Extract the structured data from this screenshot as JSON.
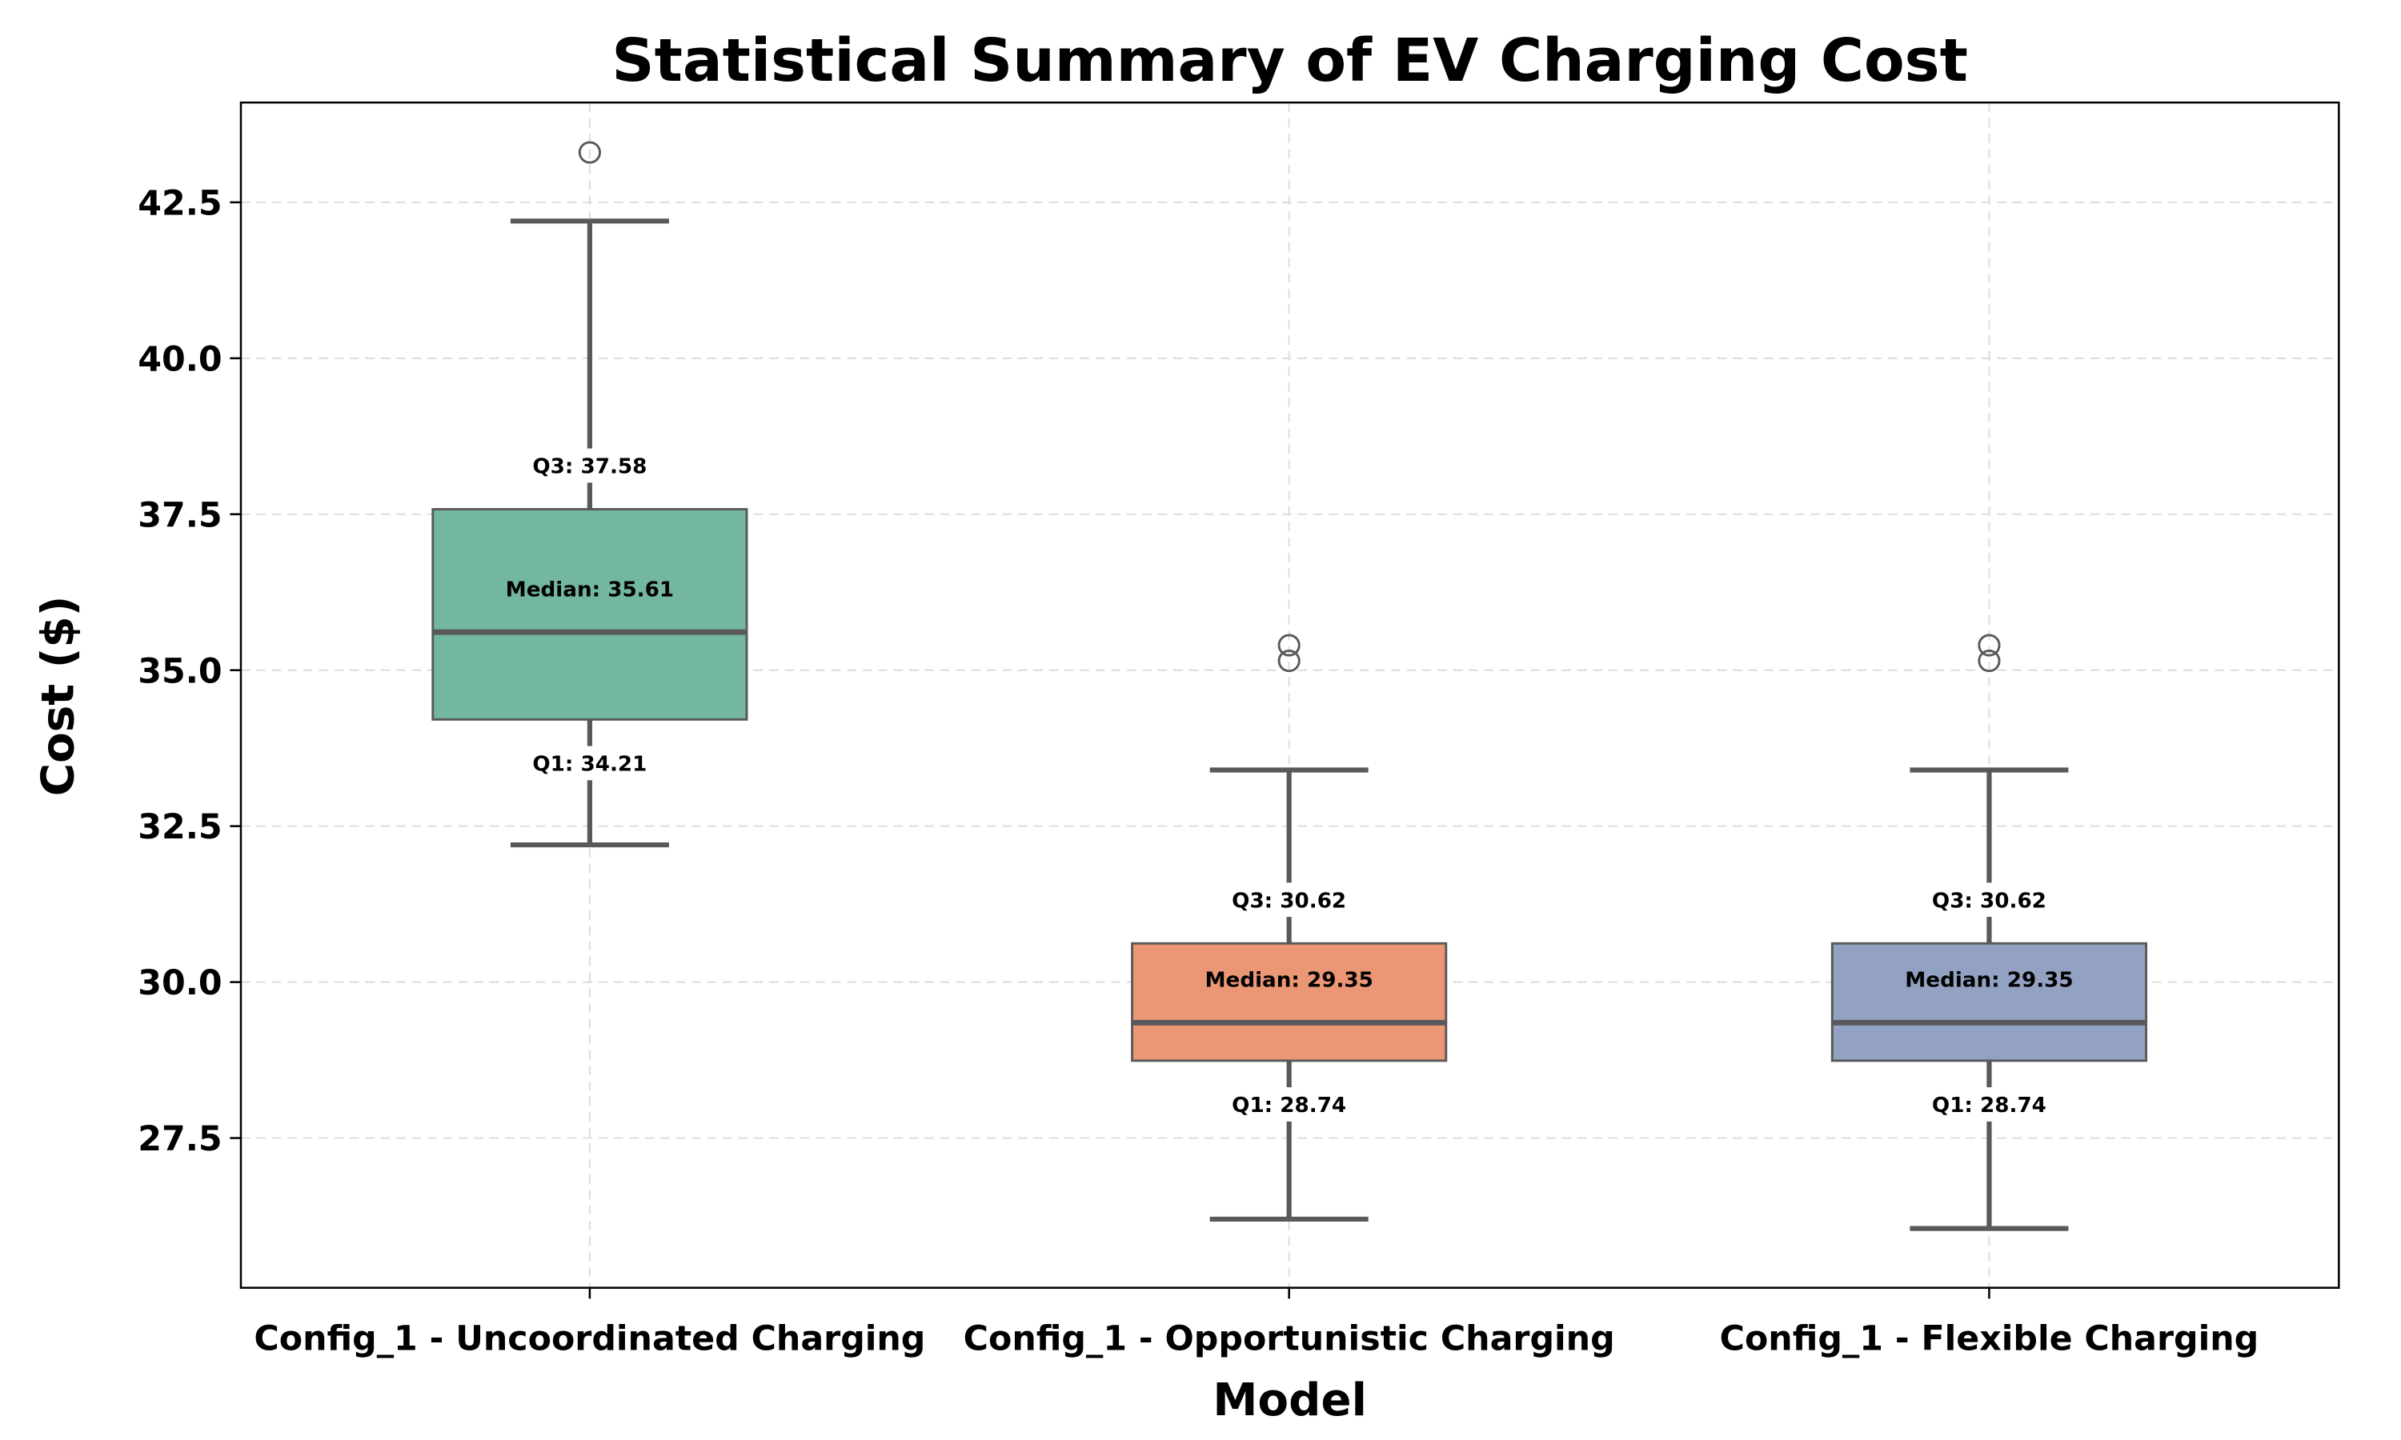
{
  "chart_data": {
    "type": "box",
    "title": "Statistical Summary of EV Charging Cost",
    "xlabel": "Model",
    "ylabel": "Cost ($)",
    "ylim": [
      25.1,
      44.1
    ],
    "yticks": [
      27.5,
      30.0,
      32.5,
      35.0,
      37.5,
      40.0,
      42.5
    ],
    "ytick_labels": [
      "27.5",
      "30.0",
      "32.5",
      "35.0",
      "37.5",
      "40.0",
      "42.5"
    ],
    "grid": true,
    "categories": [
      "Config_1 - Uncoordinated Charging",
      "Config_1 - Opportunistic Charging",
      "Config_1 - Flexible Charging"
    ],
    "boxes": [
      {
        "category": "Config_1 - Uncoordinated Charging",
        "whisker_low": 32.2,
        "q1": 34.21,
        "median": 35.61,
        "q3": 37.58,
        "whisker_high": 42.2,
        "outliers": [
          43.3
        ],
        "color": "#73b79f",
        "q3_label": "Q3: 37.58",
        "median_label": "Median: 35.61",
        "q1_label": "Q1: 34.21"
      },
      {
        "category": "Config_1 - Opportunistic Charging",
        "whisker_low": 26.2,
        "q1": 28.74,
        "median": 29.35,
        "q3": 30.62,
        "whisker_high": 33.4,
        "outliers": [
          35.15,
          35.4
        ],
        "color": "#eb9674",
        "q3_label": "Q3: 30.62",
        "median_label": "Median: 29.35",
        "q1_label": "Q1: 28.74"
      },
      {
        "category": "Config_1 - Flexible Charging",
        "whisker_low": 26.05,
        "q1": 28.74,
        "median": 29.35,
        "q3": 30.62,
        "whisker_high": 33.4,
        "outliers": [
          35.15,
          35.4
        ],
        "color": "#93a2c3",
        "q3_label": "Q3: 30.62",
        "median_label": "Median: 29.35",
        "q1_label": "Q1: 28.74"
      }
    ]
  }
}
